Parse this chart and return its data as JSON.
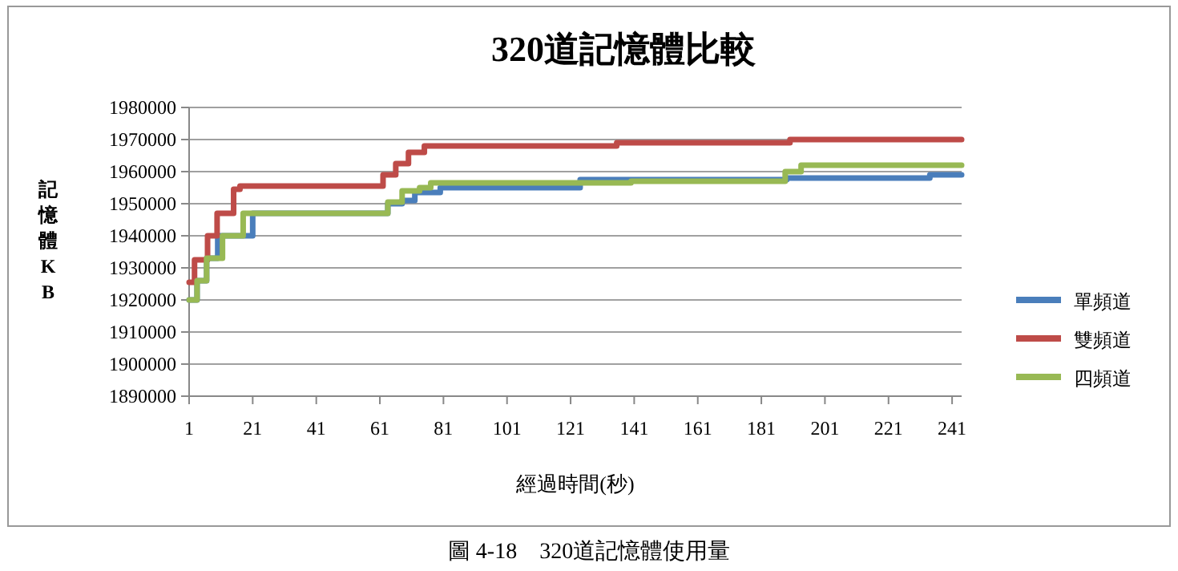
{
  "chart_data": {
    "type": "step",
    "title": "320道記憶體比較",
    "xlabel": "經過時間(秒)",
    "ylabel": "記憶體KB",
    "annotations": [
      "圖 4-18　320道記憶體使用量"
    ],
    "xlim": [
      1,
      244
    ],
    "xticks": [
      1,
      21,
      41,
      61,
      81,
      101,
      121,
      141,
      161,
      181,
      201,
      221,
      241
    ],
    "ylim": [
      1890000,
      1980000
    ],
    "yticks": [
      1890000,
      1900000,
      1910000,
      1920000,
      1930000,
      1940000,
      1950000,
      1960000,
      1970000,
      1980000
    ],
    "grid": "y",
    "legend": "right",
    "series": [
      {
        "name": "單頻道",
        "color": "#4a7ebb",
        "x": [
          1,
          3.5,
          6.5,
          10,
          21,
          63.5,
          68,
          72,
          80,
          124,
          160,
          189,
          234,
          244
        ],
        "values": [
          1920000,
          1926000,
          1933000,
          1940000,
          1947000,
          1950000,
          1951000,
          1953500,
          1955000,
          1957500,
          1957500,
          1958000,
          1959000,
          1959000
        ]
      },
      {
        "name": "雙頻道",
        "color": "#be4b48",
        "x": [
          1,
          2.7,
          6.8,
          9.8,
          15,
          17,
          62,
          66,
          70,
          75,
          135.5,
          190,
          244
        ],
        "values": [
          1925500,
          1932500,
          1940000,
          1947000,
          1954500,
          1955500,
          1959000,
          1962500,
          1966000,
          1968000,
          1969000,
          1970000,
          1970000
        ]
      },
      {
        "name": "四頻道",
        "color": "#98b954",
        "x": [
          1,
          3.5,
          6.5,
          11.5,
          18,
          63.5,
          68,
          73.5,
          77,
          140,
          188.5,
          193.5,
          244
        ],
        "values": [
          1920000,
          1926000,
          1933000,
          1940000,
          1947000,
          1950500,
          1954000,
          1955000,
          1956500,
          1957000,
          1960000,
          1962000,
          1962000
        ]
      }
    ]
  }
}
